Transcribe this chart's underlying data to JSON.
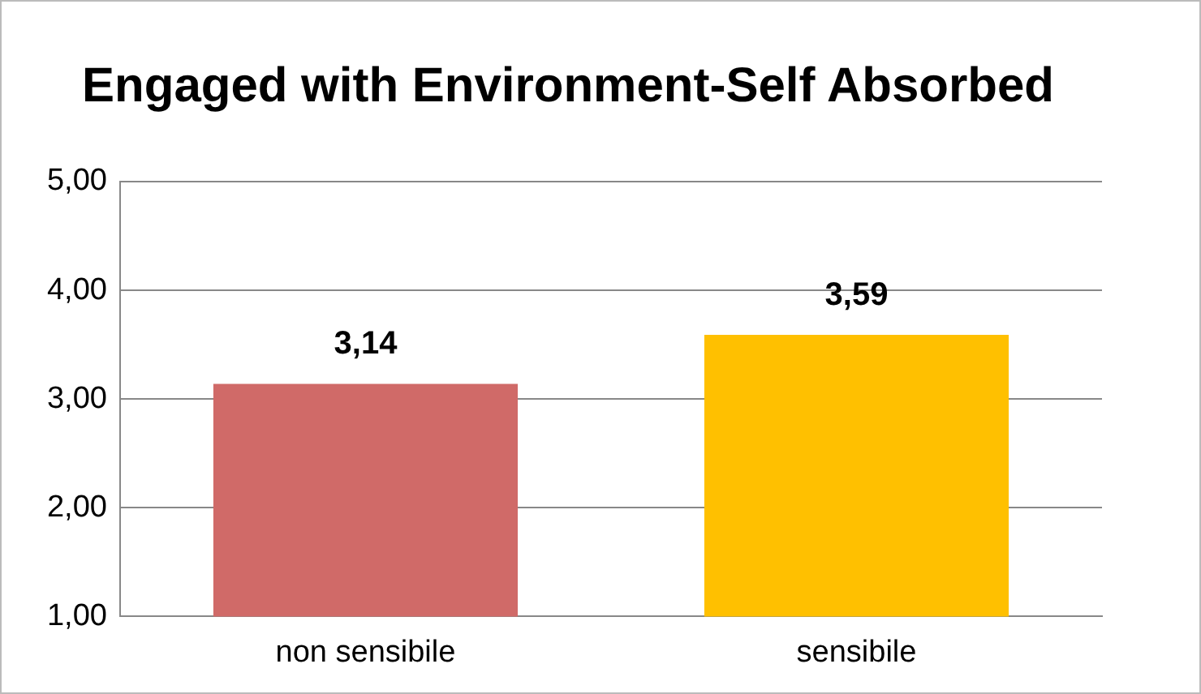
{
  "chart_data": {
    "type": "bar",
    "title": "Engaged with Environment-Self Absorbed",
    "categories": [
      "non sensibile",
      "sensibile"
    ],
    "values": [
      3.14,
      3.59
    ],
    "colors": [
      "#d06a68",
      "#ffc000"
    ],
    "value_labels": [
      "3,14",
      "3,59"
    ],
    "ylim": [
      1,
      5
    ],
    "yticks": [
      {
        "value": 1,
        "label": "1,00"
      },
      {
        "value": 2,
        "label": "2,00"
      },
      {
        "value": 3,
        "label": "3,00"
      },
      {
        "value": 4,
        "label": "4,00"
      },
      {
        "value": 5,
        "label": "5,00"
      }
    ],
    "grid": "y",
    "legend": false
  }
}
